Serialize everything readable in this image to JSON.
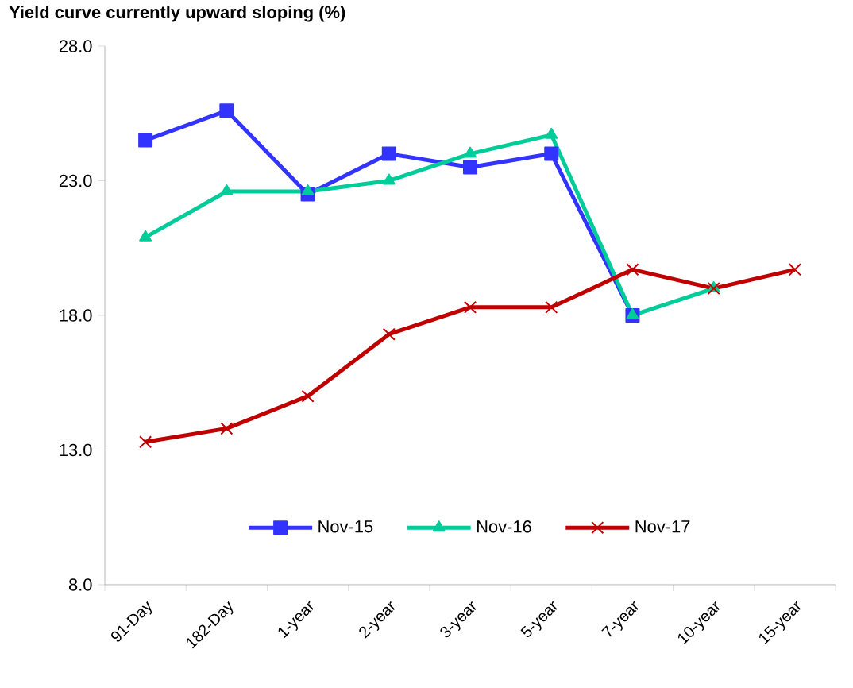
{
  "chart_data": {
    "type": "line",
    "title": "Yield curve currently upward sloping (%)",
    "categories": [
      "91-Day",
      "182-Day",
      "1-year",
      "2-year",
      "3-year",
      "5-year",
      "7-year",
      "10-year",
      "15-year"
    ],
    "series": [
      {
        "name": "Nov-15",
        "color": "#3333ff",
        "marker": "square",
        "values": [
          24.5,
          25.6,
          22.5,
          24.0,
          23.5,
          24.0,
          18.0,
          null,
          null
        ]
      },
      {
        "name": "Nov-16",
        "color": "#00cc99",
        "marker": "triangle",
        "values": [
          20.9,
          22.6,
          22.6,
          23.0,
          24.0,
          24.7,
          18.0,
          19.0,
          null
        ]
      },
      {
        "name": "Nov-17",
        "color": "#c00000",
        "marker": "cross",
        "values": [
          13.3,
          13.8,
          15.0,
          17.3,
          18.3,
          18.3,
          19.7,
          19.0,
          19.7
        ]
      }
    ],
    "ylim": [
      8,
      28
    ],
    "yticks": [
      {
        "value": 8,
        "label": "8.0"
      },
      {
        "value": 13,
        "label": "13.0"
      },
      {
        "value": 18,
        "label": "18.0"
      },
      {
        "value": 23,
        "label": "23.0"
      },
      {
        "value": 28,
        "label": "28.0"
      }
    ],
    "legend": "bottom",
    "grid": false
  }
}
